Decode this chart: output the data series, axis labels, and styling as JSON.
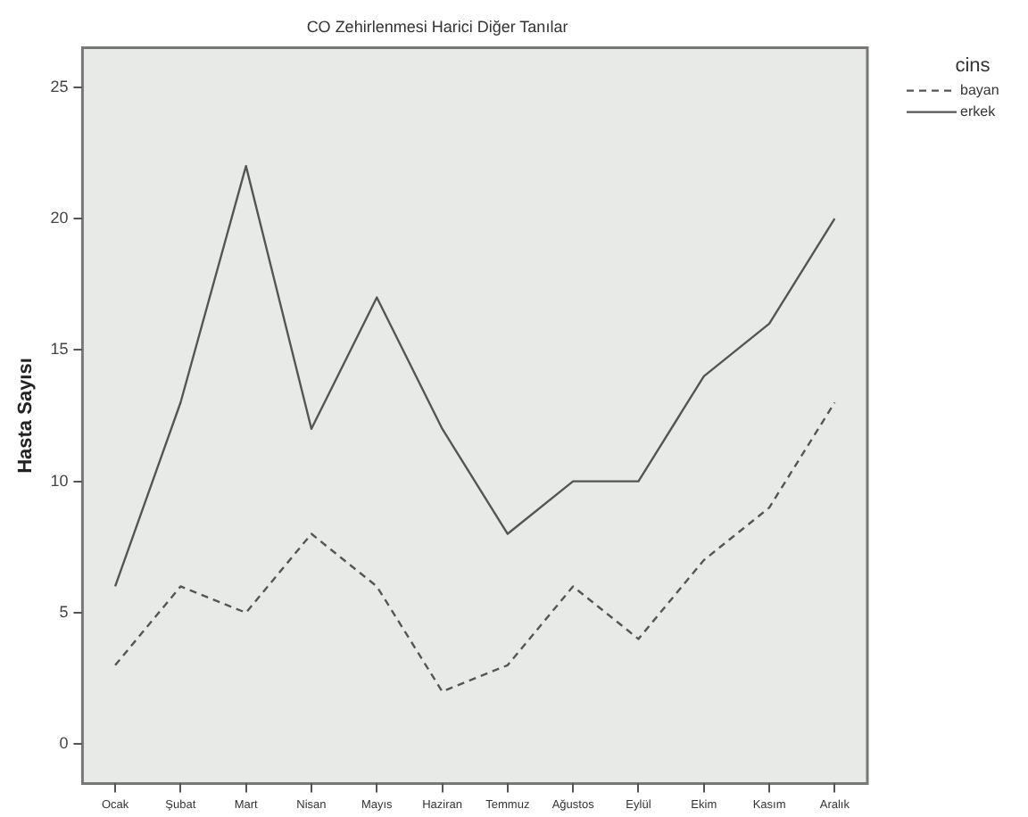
{
  "chart_data": {
    "type": "line",
    "title": "CO Zehirlenmesi Harici Diğer Tanılar",
    "ylabel": "Hasta Sayısı",
    "legend_title": "cins",
    "categories": [
      "Ocak",
      "Şubat",
      "Mart",
      "Nisan",
      "Mayıs",
      "Haziran",
      "Temmuz",
      "Ağustos",
      "Eylül",
      "Ekim",
      "Kasım",
      "Aralık"
    ],
    "series": [
      {
        "name": "bayan",
        "color": "#555555",
        "line_style": "dashed",
        "values": [
          3,
          6,
          5,
          8,
          6,
          2,
          3,
          6,
          4,
          7,
          9,
          13
        ]
      },
      {
        "name": "erkek",
        "color": "#555555",
        "line_style": "solid",
        "values": [
          6,
          13,
          22,
          12,
          17,
          12,
          8,
          10,
          10,
          14,
          16,
          20
        ]
      }
    ],
    "ylim": [
      -1.5,
      26.5
    ],
    "yticks": [
      0,
      5,
      10,
      15,
      20,
      25
    ],
    "grid": false,
    "legend": "top right",
    "marker": "none"
  }
}
